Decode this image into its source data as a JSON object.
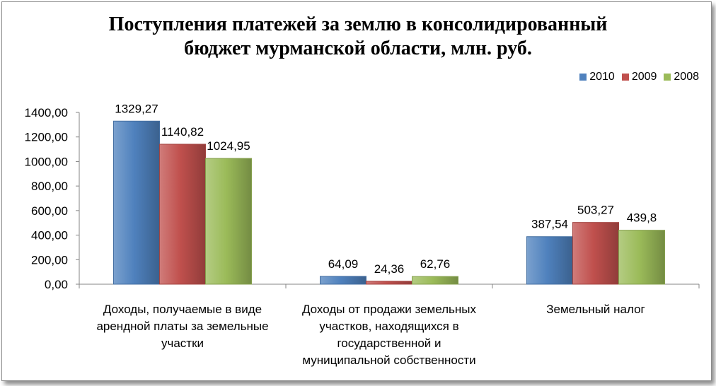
{
  "chart_data": {
    "type": "bar",
    "title": [
      "Поступления платежей за землю в консолидированный",
      "бюджет мурманской области, млн. руб."
    ],
    "categories": [
      [
        "Доходы, получаемые в виде",
        "арендной платы за земельные",
        "участки"
      ],
      [
        "Доходы от продажи земельных",
        "участков, находящихся в",
        "государственной и",
        "муниципальной собственности"
      ],
      [
        "Земельный налог"
      ]
    ],
    "series": [
      {
        "name": "2010",
        "color": "#4f81bd",
        "values": [
          1329.27,
          64.09,
          387.54
        ],
        "labels": [
          "1329,27",
          "64,09",
          "387,54"
        ]
      },
      {
        "name": "2009",
        "color": "#c0504d",
        "values": [
          1140.82,
          24.36,
          503.27
        ],
        "labels": [
          "1140,82",
          "24,36",
          "503,27"
        ]
      },
      {
        "name": "2008",
        "color": "#9bbb59",
        "values": [
          1024.95,
          62.76,
          439.8
        ],
        "labels": [
          "1024,95",
          "62,76",
          "439,8"
        ]
      }
    ],
    "ylim": [
      0,
      1400
    ],
    "yticks": [
      0,
      200,
      400,
      600,
      800,
      1000,
      1200,
      1400
    ],
    "ytick_labels": [
      "0,00",
      "200,00",
      "400,00",
      "600,00",
      "800,00",
      "1000,00",
      "1200,00",
      "1400,00"
    ],
    "legend_position": "top-right",
    "grid": false
  }
}
